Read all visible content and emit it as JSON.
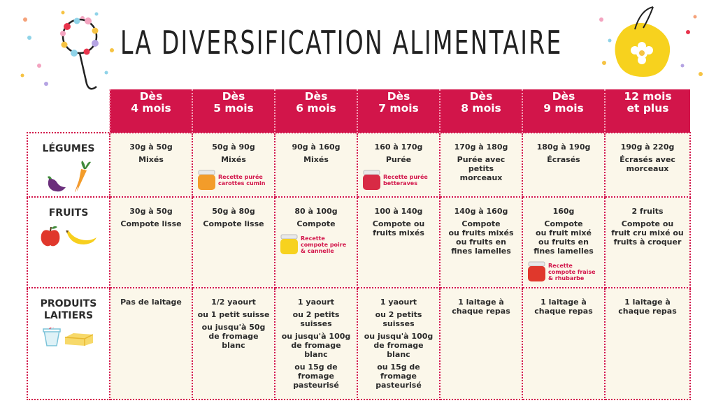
{
  "title": "LA DIVERSIFICATION ALIMENTAIRE",
  "colors": {
    "header": "#d2154a",
    "cell_bg": "#fbf7ea",
    "accent": "#d2154a"
  },
  "headers": [
    "Dès\n4 mois",
    "Dès\n5 mois",
    "Dès\n6 mois",
    "Dès\n7 mois",
    "Dès\n8 mois",
    "Dès\n9 mois",
    "12 mois\net plus"
  ],
  "rows": [
    {
      "label": "LÉGUMES",
      "icons": [
        "eggplant-icon",
        "carrot-icon"
      ],
      "cells": [
        {
          "lines": [
            "30g à 50g",
            "Mixés"
          ]
        },
        {
          "lines": [
            "50g à 90g",
            "Mixés"
          ],
          "recipe": {
            "text": "Recette purée\ncarottes cumin",
            "jar": "orange-jar-icon",
            "color": "#f39c2a"
          }
        },
        {
          "lines": [
            "90g à 160g",
            "Mixés"
          ]
        },
        {
          "lines": [
            "160 à 170g",
            "Purée"
          ],
          "recipe": {
            "text": "Recette purée\nbetteraves",
            "jar": "red-jar-icon",
            "color": "#d82a45"
          }
        },
        {
          "lines": [
            "170g à 180g",
            "Purée avec\npetits\nmorceaux"
          ]
        },
        {
          "lines": [
            "180g à 190g",
            "Écrasés"
          ]
        },
        {
          "lines": [
            "190g à 220g",
            "Écrasés avec\nmorceaux"
          ]
        }
      ]
    },
    {
      "label": "FRUITS",
      "icons": [
        "apple-icon",
        "banana-icon"
      ],
      "cells": [
        {
          "lines": [
            "30g à 50g",
            "Compote lisse"
          ]
        },
        {
          "lines": [
            "50g à 80g",
            "Compote lisse"
          ]
        },
        {
          "lines": [
            "80 à 100g",
            "Compote"
          ],
          "recipe": {
            "text": "Recette\ncompote poire\n& cannelle",
            "jar": "yellow-jar-icon",
            "color": "#f7d21e"
          }
        },
        {
          "lines": [
            "100 à 140g",
            "Compote ou\nfruits mixés"
          ]
        },
        {
          "lines": [
            "140g à 160g",
            "Compote\nou fruits mixés\nou fruits en\nfines lamelles"
          ]
        },
        {
          "lines": [
            "160g",
            "Compote\nou fruit mixé\nou fruits en\nfines lamelles"
          ],
          "recipe": {
            "text": "Recette\ncompote fraise\n& rhubarbe",
            "jar": "red-jar-icon",
            "color": "#e0382c"
          }
        },
        {
          "lines": [
            "2 fruits",
            "Compote ou\nfruit cru mixé ou\nfruits à croquer"
          ]
        }
      ]
    },
    {
      "label": "PRODUITS\nLAITIERS",
      "icons": [
        "yogurt-icon",
        "butter-icon"
      ],
      "cells": [
        {
          "lines": [
            "Pas de laitage"
          ]
        },
        {
          "lines": [
            "1/2 yaourt",
            "ou 1 petit suisse",
            "ou jusqu'à 50g\nde fromage\nblanc"
          ]
        },
        {
          "lines": [
            "1 yaourt",
            "ou 2 petits\nsuisses",
            "ou jusqu'à 100g\nde fromage\nblanc",
            "ou 15g de\nfromage\npasteurisé"
          ]
        },
        {
          "lines": [
            "1 yaourt",
            "ou 2 petits\nsuisses",
            "ou jusqu'à 100g\nde fromage\nblanc",
            "ou 15g de\nfromage\npasteurisé"
          ]
        },
        {
          "lines": [
            "1 laitage à\nchaque repas"
          ]
        },
        {
          "lines": [
            "1 laitage à\nchaque repas"
          ]
        },
        {
          "lines": [
            "1 laitage à\nchaque repas"
          ]
        }
      ]
    }
  ]
}
